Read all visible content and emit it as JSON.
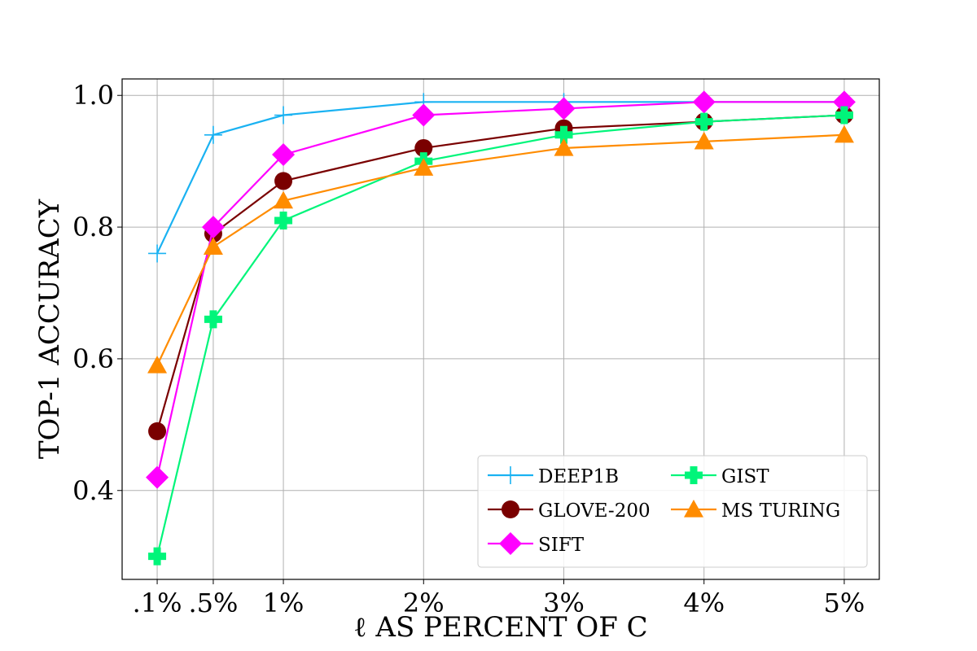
{
  "chart_data": {
    "type": "line",
    "title": "",
    "xlabel": "ℓ  AS PERCENT OF  C",
    "ylabel": "TOP-1 ACCURACY",
    "categories": [
      ".1%",
      ".5%",
      "1%",
      "2%",
      "3%",
      "4%",
      "5%"
    ],
    "x": [
      0.1,
      0.5,
      1,
      2,
      3,
      4,
      5
    ],
    "xlim": [
      -0.15,
      5.25
    ],
    "ylim": [
      0.265,
      1.025
    ],
    "yticks": [
      0.4,
      0.6,
      0.8,
      1.0
    ],
    "ytick_labels": [
      "0.4",
      "0.6",
      "0.8",
      "1.0"
    ],
    "grid": true,
    "legend_position": "lower-right",
    "series": [
      {
        "name": "DEEP1B",
        "color": "#1ab2f2",
        "marker": "plus",
        "values": [
          0.76,
          0.94,
          0.97,
          0.99,
          0.99,
          0.99,
          0.99
        ]
      },
      {
        "name": "GLOVE-200",
        "color": "#7a0000",
        "marker": "circle",
        "values": [
          0.49,
          0.79,
          0.87,
          0.92,
          0.95,
          0.96,
          0.97
        ]
      },
      {
        "name": "SIFT",
        "color": "#ff00ff",
        "marker": "diamond",
        "values": [
          0.42,
          0.8,
          0.91,
          0.97,
          0.98,
          0.99,
          0.99
        ]
      },
      {
        "name": "GIST",
        "color": "#00f57a",
        "marker": "cross",
        "values": [
          0.3,
          0.66,
          0.81,
          0.9,
          0.94,
          0.96,
          0.97
        ]
      },
      {
        "name": "MS TURING",
        "color": "#ff8c00",
        "marker": "triangle",
        "values": [
          0.59,
          0.77,
          0.84,
          0.89,
          0.92,
          0.93,
          0.94
        ]
      }
    ]
  }
}
